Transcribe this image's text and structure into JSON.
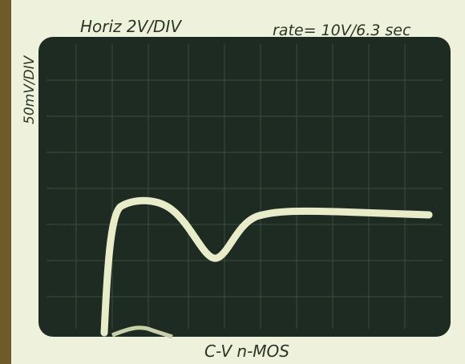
{
  "header": {
    "horizontal_scale": "Horiz 2V/DIV",
    "rate": "rate= 10V/6.3 sec"
  },
  "vertical_scale": "50mV/DIV",
  "caption": "C-V n-MOS"
}
